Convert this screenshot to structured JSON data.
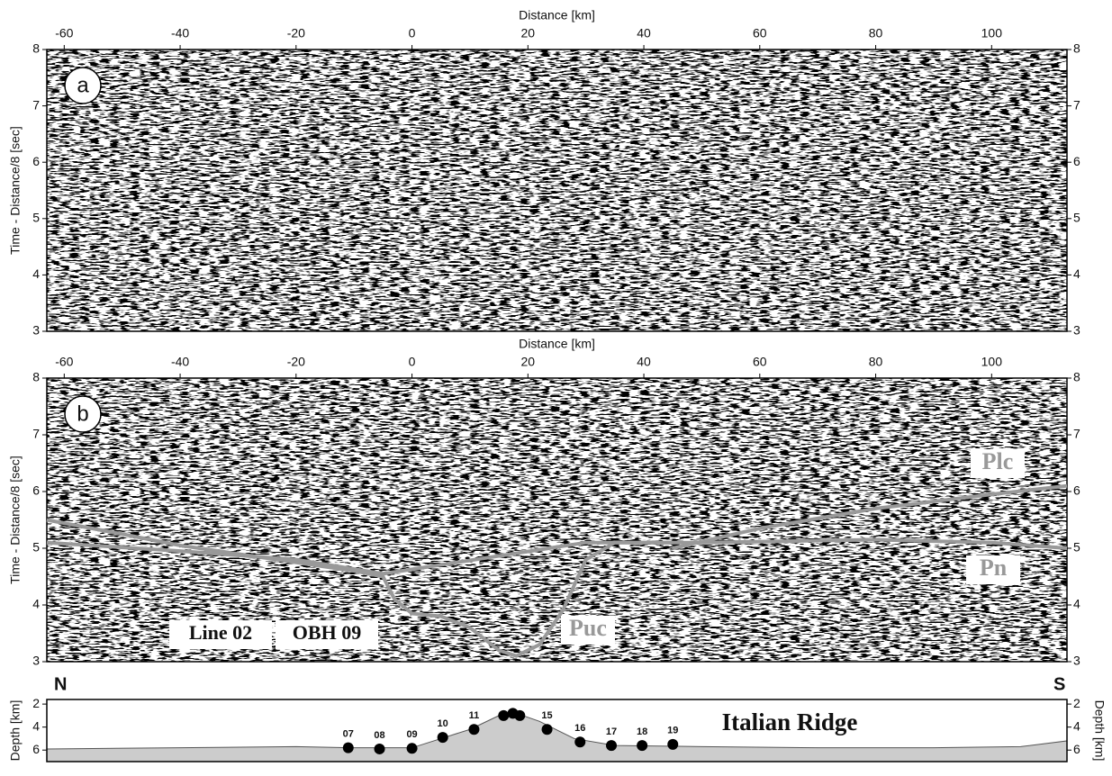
{
  "chart_data": [
    {
      "type": "seismic",
      "panel_label": "a",
      "xlabel": "Distance [km]",
      "ylabel": "Time - Distance/8 [sec]",
      "xlim": [
        -63,
        113
      ],
      "ylim": [
        3,
        8
      ],
      "xticks": [
        -60,
        -40,
        -20,
        0,
        20,
        40,
        60,
        80,
        100
      ],
      "yticks": [
        3,
        4,
        5,
        6,
        7,
        8
      ]
    },
    {
      "type": "seismic",
      "panel_label": "b",
      "xlabel": "Distance [km]",
      "ylabel": "Time - Distance/8 [sec]",
      "xlim": [
        -63,
        113
      ],
      "ylim": [
        3,
        8
      ],
      "xticks": [
        -60,
        -40,
        -20,
        0,
        20,
        40,
        60,
        80,
        100
      ],
      "yticks": [
        3,
        4,
        5,
        6,
        7,
        8
      ],
      "annotations": [
        "Line 02",
        "OBH 09"
      ],
      "series": [
        {
          "name": "Puc",
          "color": "#999999",
          "x": [
            -63,
            -50,
            -40,
            -30,
            -20,
            -10,
            -5,
            -3,
            0,
            5,
            10,
            15,
            18,
            22,
            26,
            30,
            35,
            45
          ],
          "values": [
            5.5,
            5.25,
            5.05,
            4.9,
            4.75,
            4.6,
            4.5,
            4.1,
            3.85,
            3.8,
            3.6,
            3.2,
            3.1,
            3.3,
            3.9,
            4.8,
            5.1,
            5.1
          ]
        },
        {
          "name": "Pn",
          "color": "#999999",
          "x": [
            -63,
            -40,
            -20,
            -5,
            30,
            50,
            80,
            100,
            113
          ],
          "values": [
            5.1,
            4.95,
            4.8,
            4.55,
            5.1,
            5.1,
            5.15,
            5.1,
            5.0
          ]
        },
        {
          "name": "Plc",
          "color": "#999999",
          "x": [
            45,
            60,
            80,
            100,
            113
          ],
          "values": [
            5.0,
            5.35,
            5.7,
            5.95,
            6.1
          ]
        }
      ]
    },
    {
      "type": "profile",
      "ylabel": "Depth [km]",
      "xlim": [
        -63,
        113
      ],
      "ylim": [
        7,
        1.6
      ],
      "yticks": [
        2,
        4,
        6
      ],
      "annotations": [
        "N",
        "S",
        "Italian Ridge"
      ],
      "profile": {
        "color": "#cccccc",
        "x": [
          -63,
          -40,
          -20,
          -10,
          0,
          5,
          10,
          15,
          18,
          22,
          28,
          35,
          50,
          70,
          90,
          105,
          113
        ],
        "values": [
          5.9,
          5.8,
          5.7,
          5.8,
          5.8,
          5.0,
          4.2,
          3.0,
          2.8,
          3.5,
          5.0,
          5.6,
          5.7,
          5.8,
          5.8,
          5.7,
          5.2
        ]
      },
      "stations": {
        "labels": [
          "07",
          "08",
          "09",
          "10",
          "11",
          null,
          null,
          null,
          "15",
          "16",
          "17",
          "18",
          "19"
        ],
        "x": [
          -11,
          -5.6,
          0,
          5.3,
          10.7,
          15.8,
          17.4,
          18.6,
          23.3,
          29,
          34.4,
          39.7,
          45
        ],
        "values": [
          5.8,
          5.9,
          5.85,
          4.9,
          4.2,
          3.0,
          2.8,
          3.0,
          4.2,
          5.3,
          5.6,
          5.6,
          5.5
        ]
      }
    }
  ]
}
